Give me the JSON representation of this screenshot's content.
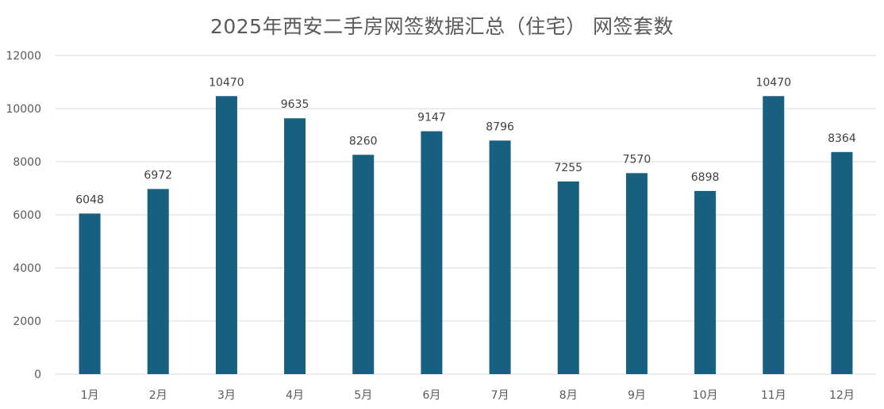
{
  "chart_data": {
    "type": "bar",
    "title": "2025年西安二手房网签数据汇总（住宅） 网签套数",
    "categories": [
      "1月",
      "2月",
      "3月",
      "4月",
      "5月",
      "6月",
      "7月",
      "8月",
      "9月",
      "10月",
      "11月",
      "12月"
    ],
    "series": [
      {
        "values": [
          6048,
          6972,
          10470,
          9635,
          8260,
          9147,
          8796,
          7255,
          7570,
          6898,
          10470,
          8364
        ]
      }
    ],
    "ylim": [
      0,
      12000
    ],
    "yticks": [
      "0",
      "2000",
      "4000",
      "6000",
      "8000",
      "10000",
      "12000"
    ],
    "xlabel": "",
    "ylabel": "",
    "grid": true,
    "legend": "none",
    "colors": {
      "bar": "#17607f"
    }
  }
}
